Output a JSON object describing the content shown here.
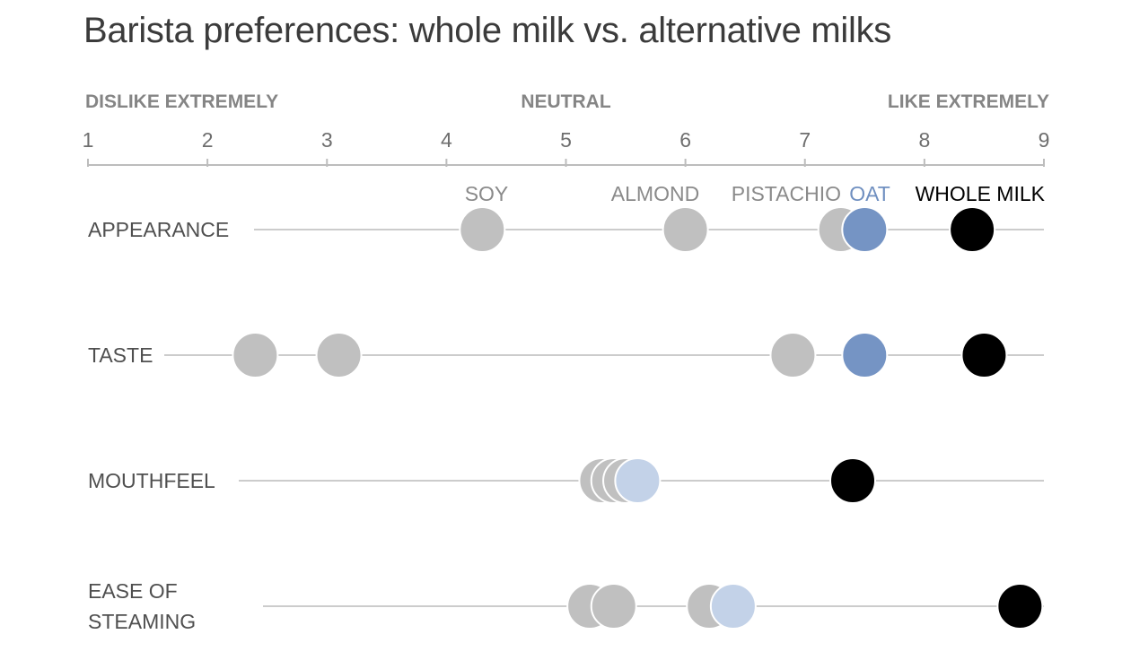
{
  "chart_data": {
    "type": "scatter",
    "title": "Barista preferences: whole milk vs. alternative milks",
    "scale_labels": {
      "low": "DISLIKE EXTREMELY",
      "mid": "NEUTRAL",
      "high": "LIKE EXTREMELY"
    },
    "xlim": [
      1,
      9
    ],
    "ticks": [
      "1",
      "2",
      "3",
      "4",
      "5",
      "6",
      "7",
      "8",
      "9"
    ],
    "grid": false,
    "legend": "direct labels above first row",
    "categories": [
      [
        "APPEARANCE"
      ],
      [
        "TASTE"
      ],
      [
        "MOUTHFEEL"
      ],
      [
        "EASE OF",
        "STEAMING"
      ]
    ],
    "series": [
      {
        "name": "SOY",
        "color": "#c0c0c0",
        "label_color": "#8a8a8a",
        "values": [
          4.3,
          2.4,
          5.3,
          5.2
        ]
      },
      {
        "name": "ALMOND",
        "color": "#c0c0c0",
        "label_color": "#8a8a8a",
        "values": [
          6.0,
          3.1,
          5.4,
          5.4
        ]
      },
      {
        "name": "PISTACHIO",
        "color": "#c0c0c0",
        "label_color": "#8a8a8a",
        "values": [
          7.3,
          6.9,
          5.5,
          6.2
        ]
      },
      {
        "name": "OAT",
        "color": "#7594c4",
        "label_color": "#6f8fc0",
        "values": [
          7.5,
          7.5,
          5.6,
          6.4
        ],
        "alt_color": "#c3d2e8"
      },
      {
        "name": "WHOLE MILK",
        "color": "#000000",
        "label_color": "#000000",
        "values": [
          8.4,
          8.5,
          7.4,
          8.8
        ]
      }
    ]
  }
}
